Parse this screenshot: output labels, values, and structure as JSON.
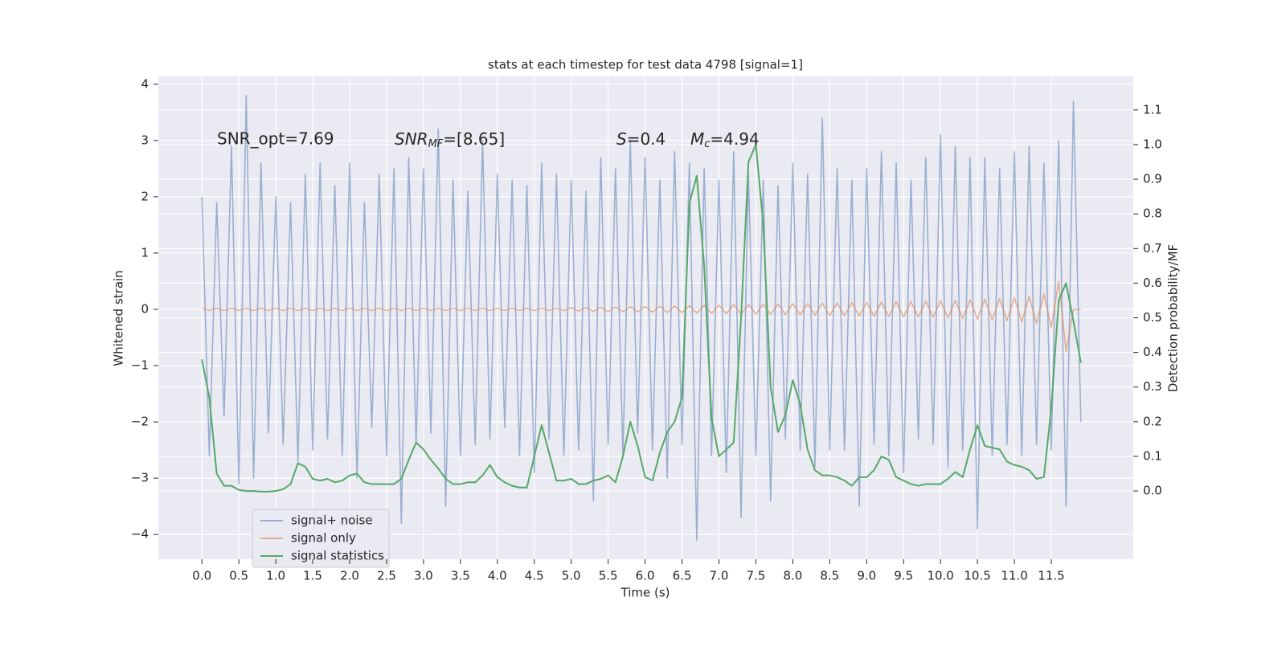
{
  "chart_data": {
    "type": "line",
    "title": "stats at each timestep for test data 4798 [signal=1]",
    "xlabel": "Time (s)",
    "ylabel": "Whitened strain",
    "y2label": "Detection probability/MF",
    "annotations": [
      {
        "text": "SNR_opt=7.69"
      },
      {
        "symbol": "SNR",
        "sub": "MF",
        "rest": "=[8.65]"
      },
      {
        "symbol": "S",
        "rest": "=0.4"
      },
      {
        "symbol": "M",
        "sub": "c",
        "rest": "=4.94"
      }
    ],
    "grid": true,
    "legend": "lower left",
    "xlim": [
      -0.59,
      12.61
    ],
    "ylim": [
      -4.44,
      4.14
    ],
    "y2lim": [
      -0.197,
      1.197
    ],
    "xticks": [
      {
        "value": 0,
        "label": "0.0"
      },
      0.5,
      {
        "value": 1,
        "label": "1.0"
      },
      1.5,
      {
        "value": 2,
        "label": "2.0"
      },
      2.5,
      {
        "value": 3,
        "label": "3.0"
      },
      3.5,
      {
        "value": 4,
        "label": "4.0"
      },
      4.5,
      {
        "value": 5,
        "label": "5.0"
      },
      5.5,
      {
        "value": 6,
        "label": "6.0"
      },
      6.5,
      {
        "value": 7,
        "label": "7.0"
      },
      7.5,
      {
        "value": 8,
        "label": "8.0"
      },
      8.5,
      {
        "value": 9,
        "label": "9.0"
      },
      9.5,
      {
        "value": 10,
        "label": "10.0"
      },
      10.5,
      {
        "value": 11,
        "label": "11.0"
      },
      11.5
    ],
    "yticks": [
      4,
      3,
      2,
      1,
      0,
      {
        "value": -1,
        "label": "−1"
      },
      {
        "value": -2,
        "label": "−2"
      },
      {
        "value": -3,
        "label": "−3"
      },
      {
        "value": -4,
        "label": "−4"
      }
    ],
    "y2ticks": [
      {
        "value": 0,
        "label": "0.0"
      },
      0.1,
      0.2,
      0.3,
      0.4,
      0.5,
      0.6,
      0.7,
      0.8,
      0.9,
      {
        "value": 1,
        "label": "1.0"
      },
      1.1
    ],
    "x": [
      0.0,
      0.1,
      0.2,
      0.3,
      0.4,
      0.5,
      0.6,
      0.7,
      0.8,
      0.9,
      1.0,
      1.1,
      1.2,
      1.3,
      1.4,
      1.5,
      1.6,
      1.7,
      1.8,
      1.9,
      2.0,
      2.1,
      2.2,
      2.3,
      2.4,
      2.5,
      2.6,
      2.7,
      2.8,
      2.9,
      3.0,
      3.1,
      3.2,
      3.3,
      3.4,
      3.5,
      3.6,
      3.7,
      3.8,
      3.9,
      4.0,
      4.1,
      4.2,
      4.3,
      4.4,
      4.5,
      4.6,
      4.7,
      4.8,
      4.9,
      5.0,
      5.1,
      5.2,
      5.3,
      5.4,
      5.5,
      5.6,
      5.7,
      5.8,
      5.9,
      6.0,
      6.1,
      6.2,
      6.3,
      6.4,
      6.5,
      6.6,
      6.7,
      6.8,
      6.9,
      7.0,
      7.1,
      7.2,
      7.3,
      7.4,
      7.5,
      7.6,
      7.7,
      7.8,
      7.9,
      8.0,
      8.1,
      8.2,
      8.3,
      8.4,
      8.5,
      8.6,
      8.7,
      8.8,
      8.9,
      9.0,
      9.1,
      9.2,
      9.3,
      9.4,
      9.5,
      9.6,
      9.7,
      9.8,
      9.9,
      10.0,
      10.1,
      10.2,
      10.3,
      10.4,
      10.5,
      10.6,
      10.7,
      10.8,
      10.9,
      11.0,
      11.1,
      11.2,
      11.3,
      11.4,
      11.5,
      11.6,
      11.7,
      11.8,
      11.9
    ],
    "series": [
      {
        "name": "signal+ noise",
        "color": "#4c72b0",
        "opacity": 0.5,
        "values": [
          2.0,
          -2.6,
          1.9,
          -1.9,
          2.9,
          -3.1,
          3.8,
          -3.0,
          2.6,
          -2.2,
          2.0,
          -2.4,
          1.9,
          -2.7,
          2.4,
          -2.5,
          2.6,
          -2.3,
          2.2,
          -2.6,
          2.6,
          -3.0,
          1.9,
          -2.1,
          2.4,
          -2.6,
          2.5,
          -3.8,
          2.7,
          -2.4,
          2.5,
          -2.2,
          3.2,
          -3.5,
          2.3,
          -2.6,
          2.1,
          -2.4,
          3.0,
          -2.3,
          2.4,
          -2.1,
          2.3,
          -2.6,
          2.2,
          -2.9,
          2.6,
          -2.3,
          2.4,
          -2.6,
          2.3,
          -2.5,
          2.1,
          -3.4,
          2.7,
          -2.4,
          2.5,
          -2.6,
          3.0,
          -2.2,
          2.7,
          -2.5,
          2.3,
          -3.0,
          2.8,
          -2.4,
          2.6,
          -4.1,
          2.5,
          -2.6,
          2.3,
          -2.9,
          2.8,
          -3.7,
          2.4,
          -2.6,
          2.3,
          -3.4,
          2.2,
          -2.3,
          2.6,
          -2.5,
          2.4,
          -2.8,
          3.4,
          -2.5,
          2.5,
          -2.5,
          2.3,
          -3.5,
          2.5,
          -2.4,
          2.8,
          -2.6,
          2.6,
          -2.9,
          2.3,
          -2.3,
          2.7,
          -2.4,
          3.1,
          -2.8,
          2.9,
          -2.5,
          2.7,
          -3.9,
          2.7,
          -2.6,
          2.5,
          -2.4,
          2.8,
          -2.6,
          2.9,
          -2.4,
          2.6,
          -2.5,
          3.0,
          -3.5,
          3.7,
          -2.0
        ]
      },
      {
        "name": "signal only",
        "color": "#dd8452",
        "opacity": 0.6,
        "values": [
          0.02,
          -0.02,
          0.02,
          -0.02,
          0.02,
          -0.02,
          0.02,
          -0.02,
          0.02,
          -0.02,
          0.02,
          -0.02,
          0.02,
          -0.02,
          0.02,
          -0.02,
          0.02,
          -0.02,
          0.02,
          -0.02,
          0.02,
          -0.02,
          0.02,
          -0.02,
          0.02,
          -0.02,
          0.02,
          -0.02,
          0.02,
          -0.02,
          0.02,
          -0.02,
          0.02,
          -0.02,
          0.02,
          -0.02,
          0.02,
          -0.02,
          0.02,
          -0.02,
          0.02,
          -0.02,
          0.02,
          -0.02,
          0.02,
          -0.02,
          0.02,
          -0.02,
          0.02,
          -0.02,
          0.03,
          -0.03,
          0.03,
          -0.035,
          0.035,
          -0.04,
          0.04,
          -0.04,
          0.045,
          -0.045,
          0.05,
          -0.05,
          0.055,
          -0.055,
          0.06,
          -0.06,
          0.065,
          -0.065,
          0.07,
          -0.07,
          0.075,
          -0.075,
          0.08,
          -0.08,
          0.085,
          -0.085,
          0.09,
          -0.09,
          0.095,
          -0.095,
          0.1,
          -0.1,
          0.1,
          -0.105,
          0.11,
          -0.11,
          0.115,
          -0.115,
          0.12,
          -0.12,
          0.125,
          -0.125,
          0.13,
          -0.13,
          0.135,
          -0.135,
          0.14,
          -0.14,
          0.145,
          -0.145,
          0.15,
          -0.155,
          0.16,
          -0.165,
          0.17,
          -0.175,
          0.18,
          -0.185,
          0.19,
          -0.2,
          0.21,
          -0.22,
          0.23,
          -0.25,
          0.27,
          -0.32,
          0.5,
          -0.75,
          0.0,
          0.0
        ]
      },
      {
        "name": "signal statistics",
        "color": "#55a868",
        "opacity": 1,
        "axis": "y2",
        "values": [
          0.38,
          0.27,
          0.05,
          0.015,
          0.015,
          0.003,
          0.0,
          0.0,
          -0.002,
          -0.002,
          0.0,
          0.005,
          0.02,
          0.08,
          0.07,
          0.035,
          0.03,
          0.035,
          0.025,
          0.03,
          0.045,
          0.05,
          0.025,
          0.02,
          0.02,
          0.02,
          0.02,
          0.035,
          0.09,
          0.14,
          0.12,
          0.09,
          0.065,
          0.035,
          0.02,
          0.02,
          0.025,
          0.025,
          0.045,
          0.075,
          0.04,
          0.025,
          0.015,
          0.01,
          0.01,
          0.1,
          0.19,
          0.11,
          0.03,
          0.03,
          0.035,
          0.02,
          0.02,
          0.03,
          0.035,
          0.045,
          0.025,
          0.1,
          0.2,
          0.13,
          0.04,
          0.03,
          0.11,
          0.17,
          0.2,
          0.27,
          0.83,
          0.91,
          0.65,
          0.21,
          0.1,
          0.12,
          0.14,
          0.5,
          0.95,
          1.0,
          0.77,
          0.3,
          0.17,
          0.22,
          0.32,
          0.25,
          0.12,
          0.06,
          0.045,
          0.045,
          0.04,
          0.03,
          0.015,
          0.04,
          0.04,
          0.06,
          0.1,
          0.09,
          0.04,
          0.03,
          0.02,
          0.015,
          0.02,
          0.02,
          0.02,
          0.035,
          0.055,
          0.04,
          0.12,
          0.19,
          0.13,
          0.125,
          0.12,
          0.085,
          0.075,
          0.07,
          0.06,
          0.035,
          0.04,
          0.24,
          0.55,
          0.6,
          0.49,
          0.37
        ]
      }
    ]
  }
}
